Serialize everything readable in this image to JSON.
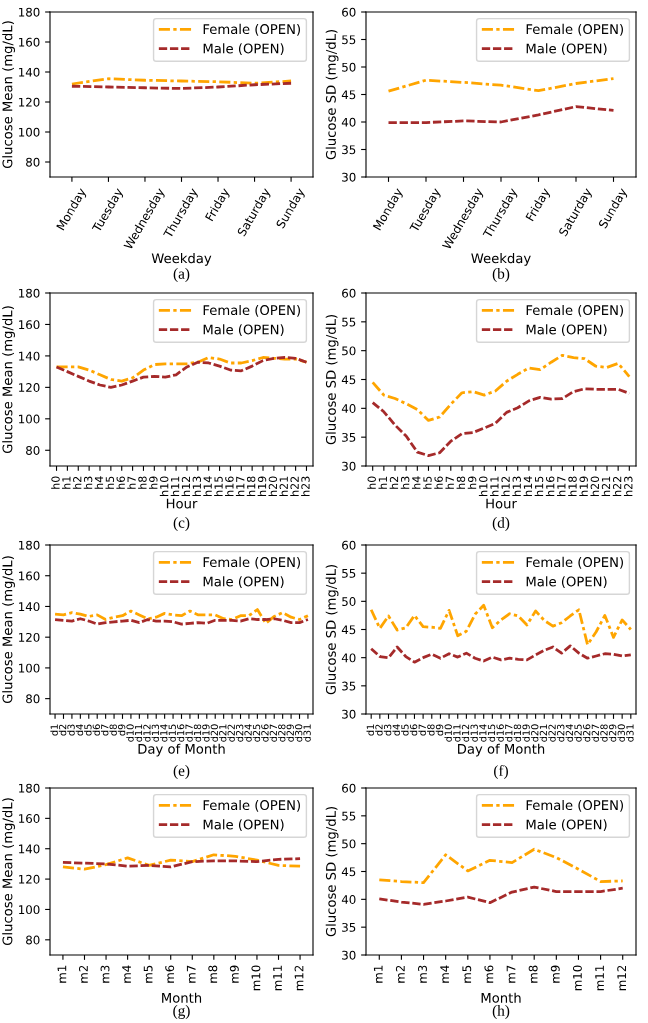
{
  "chart_data": [
    {
      "type": "line",
      "xlabel": "Weekday",
      "ylabel": "Glucose Mean (mg/dL)",
      "annotations": [
        "(a)"
      ],
      "categories": [
        "Monday",
        "Tuesday",
        "Wednesday",
        "Thursday",
        "Friday",
        "Saturday",
        "Sunday"
      ],
      "ylim": [
        70,
        180
      ],
      "yticks": [
        80,
        100,
        120,
        140,
        160,
        180
      ],
      "grid": false,
      "legend": "top right",
      "series": [
        {
          "name": "Female (OPEN)",
          "color": "#ffa500",
          "line_style": "dashdot",
          "values": [
            132,
            135.5,
            134.5,
            134,
            133.5,
            132.5,
            134
          ]
        },
        {
          "name": "Male (OPEN)",
          "color": "#a52a2a",
          "line_style": "dashed",
          "values": [
            130.5,
            130,
            129.5,
            129,
            130,
            131.5,
            132.5
          ]
        }
      ]
    },
    {
      "type": "line",
      "xlabel": "Weekday",
      "ylabel": "Glucose SD (mg/dL)",
      "annotations": [
        "(b)"
      ],
      "categories": [
        "Monday",
        "Tuesday",
        "Wednesday",
        "Thursday",
        "Friday",
        "Saturday",
        "Sunday"
      ],
      "ylim": [
        30,
        60
      ],
      "yticks": [
        30,
        35,
        40,
        45,
        50,
        55,
        60
      ],
      "grid": false,
      "legend": "top right",
      "series": [
        {
          "name": "Female (OPEN)",
          "color": "#ffa500",
          "line_style": "dashdot",
          "values": [
            45.6,
            47.6,
            47.2,
            46.7,
            45.7,
            47.0,
            47.9
          ]
        },
        {
          "name": "Male (OPEN)",
          "color": "#a52a2a",
          "line_style": "dashed",
          "values": [
            39.9,
            39.9,
            40.2,
            40.0,
            41.3,
            42.8,
            42.1
          ]
        }
      ]
    },
    {
      "type": "line",
      "xlabel": "Hour",
      "ylabel": "Glucose Mean (mg/dL)",
      "annotations": [
        "(c)"
      ],
      "categories": [
        "h0",
        "h1",
        "h2",
        "h3",
        "h4",
        "h5",
        "h6",
        "h7",
        "h8",
        "h9",
        "h10",
        "h11",
        "h12",
        "h13",
        "h14",
        "h15",
        "h16",
        "h17",
        "h18",
        "h19",
        "h20",
        "h21",
        "h22",
        "h23"
      ],
      "ylim": [
        70,
        180
      ],
      "yticks": [
        80,
        100,
        120,
        140,
        160,
        180
      ],
      "grid": false,
      "legend": "top right",
      "series": [
        {
          "name": "Female (OPEN)",
          "color": "#ffa500",
          "line_style": "dashdot",
          "values": [
            133,
            133,
            133,
            131,
            128,
            125,
            124,
            126,
            131,
            134.5,
            135,
            135,
            135,
            136,
            139,
            138,
            135.5,
            135.5,
            137,
            139,
            138.5,
            138,
            138,
            136
          ]
        },
        {
          "name": "Male (OPEN)",
          "color": "#a52a2a",
          "line_style": "dashed",
          "values": [
            133,
            130,
            127,
            124,
            121.5,
            120,
            121.5,
            124,
            126.5,
            127,
            126.5,
            128,
            133,
            136,
            135.5,
            133.5,
            131,
            130.5,
            133.5,
            137,
            138.5,
            139,
            138.5,
            136
          ]
        }
      ]
    },
    {
      "type": "line",
      "xlabel": "Hour",
      "ylabel": "Glucose SD (mg/dL)",
      "annotations": [
        "(d)"
      ],
      "categories": [
        "h0",
        "h1",
        "h2",
        "h3",
        "h4",
        "h5",
        "h6",
        "h7",
        "h8",
        "h9",
        "h10",
        "h11",
        "h12",
        "h13",
        "h14",
        "h15",
        "h16",
        "h17",
        "h18",
        "h19",
        "h20",
        "h21",
        "h22",
        "h23"
      ],
      "ylim": [
        30,
        60
      ],
      "yticks": [
        30,
        35,
        40,
        45,
        50,
        55,
        60
      ],
      "grid": false,
      "legend": "top right",
      "series": [
        {
          "name": "Female (OPEN)",
          "color": "#ffa500",
          "line_style": "dashdot",
          "values": [
            44.5,
            42.3,
            41.7,
            40.8,
            39.8,
            37.9,
            38.5,
            40.7,
            42.7,
            42.9,
            42.3,
            43,
            44.7,
            45.9,
            47,
            46.7,
            48,
            49.2,
            48.8,
            48.6,
            47.3,
            47.1,
            47.8,
            45.5
          ]
        },
        {
          "name": "Male (OPEN)",
          "color": "#a52a2a",
          "line_style": "dashed",
          "values": [
            41,
            39.4,
            37.1,
            35.2,
            32.4,
            31.8,
            32.3,
            34.3,
            35.6,
            35.8,
            36.6,
            37.4,
            39.3,
            40.1,
            41.3,
            41.9,
            41.6,
            41.7,
            42.9,
            43.4,
            43.3,
            43.3,
            43.3,
            42.6
          ]
        }
      ]
    },
    {
      "type": "line",
      "xlabel": "Day of Month",
      "ylabel": "Glucose Mean (mg/dL)",
      "annotations": [
        "(e)"
      ],
      "categories": [
        "d1",
        "d2",
        "d3",
        "d4",
        "d5",
        "d6",
        "d7",
        "d8",
        "d9",
        "d10",
        "d11",
        "d12",
        "d13",
        "d14",
        "d15",
        "d16",
        "d17",
        "d18",
        "d19",
        "d20",
        "d21",
        "d22",
        "d23",
        "d24",
        "d25",
        "d26",
        "d27",
        "d28",
        "d29",
        "d30",
        "d31"
      ],
      "ylim": [
        70,
        180
      ],
      "yticks": [
        80,
        100,
        120,
        140,
        160,
        180
      ],
      "grid": false,
      "legend": "top right",
      "series": [
        {
          "name": "Female (OPEN)",
          "color": "#ffa500",
          "line_style": "dashdot",
          "values": [
            135,
            134.5,
            136,
            135,
            133.5,
            134.5,
            131.5,
            133,
            134,
            137,
            134.5,
            132,
            133,
            135.5,
            134.5,
            134,
            137,
            134.5,
            134.5,
            134.5,
            132,
            131.5,
            134,
            134,
            138,
            129,
            133.5,
            136,
            133,
            131.5,
            134
          ]
        },
        {
          "name": "Male (OPEN)",
          "color": "#a52a2a",
          "line_style": "dashed",
          "values": [
            131.5,
            131,
            130.5,
            132,
            130.5,
            128.5,
            129.5,
            130,
            130.5,
            131,
            129.5,
            131.5,
            130.5,
            130.5,
            130,
            128.5,
            129,
            129.5,
            129,
            131,
            131,
            131,
            130.5,
            132,
            131.5,
            131.5,
            132,
            131,
            129.5,
            129.5,
            131.5
          ]
        }
      ]
    },
    {
      "type": "line",
      "xlabel": "Day of Month",
      "ylabel": "Glucose SD (mg/dL)",
      "annotations": [
        "(f)"
      ],
      "categories": [
        "d1",
        "d2",
        "d3",
        "d4",
        "d5",
        "d6",
        "d7",
        "d8",
        "d9",
        "d10",
        "d11",
        "d12",
        "d13",
        "d14",
        "d15",
        "d16",
        "d17",
        "d18",
        "d19",
        "d20",
        "d21",
        "d22",
        "d23",
        "d24",
        "d25",
        "d26",
        "d27",
        "d28",
        "d29",
        "d30",
        "d31"
      ],
      "ylim": [
        30,
        60
      ],
      "yticks": [
        30,
        35,
        40,
        45,
        50,
        55,
        60
      ],
      "grid": false,
      "legend": "top right",
      "series": [
        {
          "name": "Female (OPEN)",
          "color": "#ffa500",
          "line_style": "dashdot",
          "values": [
            48.5,
            45.2,
            47.4,
            44.9,
            45.3,
            47.5,
            45.5,
            45.4,
            45.2,
            48.4,
            43.9,
            44.7,
            47.7,
            49.3,
            45.3,
            46.7,
            47.8,
            47.4,
            45.8,
            48.3,
            46.6,
            45.6,
            46.2,
            47.4,
            48.5,
            42.3,
            44.6,
            47.5,
            43.6,
            46.7,
            45.0
          ]
        },
        {
          "name": "Male (OPEN)",
          "color": "#a52a2a",
          "line_style": "dashed",
          "values": [
            41.6,
            40.2,
            40.0,
            41.9,
            40.2,
            39.2,
            40.0,
            40.6,
            39.9,
            40.7,
            40.1,
            40.8,
            39.9,
            39.4,
            40.1,
            39.6,
            39.9,
            39.7,
            39.6,
            40.5,
            41.3,
            41.9,
            40.8,
            42.1,
            40.8,
            39.9,
            40.3,
            40.7,
            40.6,
            40.3,
            40.5
          ]
        }
      ]
    },
    {
      "type": "line",
      "xlabel": "Month",
      "ylabel": "Glucose Mean (mg/dL)",
      "annotations": [
        "(g)"
      ],
      "categories": [
        "m1",
        "m2",
        "m3",
        "m4",
        "m5",
        "m6",
        "m7",
        "m8",
        "m9",
        "m10",
        "m11",
        "m12"
      ],
      "ylim": [
        70,
        180
      ],
      "yticks": [
        80,
        100,
        120,
        140,
        160,
        180
      ],
      "grid": false,
      "legend": "top right",
      "series": [
        {
          "name": "Female (OPEN)",
          "color": "#ffa500",
          "line_style": "dashdot",
          "values": [
            128,
            126.5,
            129.5,
            134,
            129,
            132.5,
            131.5,
            136,
            135,
            132.5,
            129,
            128.5
          ]
        },
        {
          "name": "Male (OPEN)",
          "color": "#a52a2a",
          "line_style": "dashed",
          "values": [
            131,
            130.5,
            130,
            128.5,
            129,
            128,
            131.5,
            132,
            132,
            131.5,
            133,
            133.5
          ]
        }
      ]
    },
    {
      "type": "line",
      "xlabel": "Month",
      "ylabel": "Glucose SD (mg/dL)",
      "annotations": [
        "(h)"
      ],
      "categories": [
        "m1",
        "m2",
        "m3",
        "m4",
        "m5",
        "m6",
        "m7",
        "m8",
        "m9",
        "m10",
        "m11",
        "m12"
      ],
      "ylim": [
        30,
        60
      ],
      "yticks": [
        30,
        35,
        40,
        45,
        50,
        55,
        60
      ],
      "grid": false,
      "legend": "top right",
      "series": [
        {
          "name": "Female (OPEN)",
          "color": "#ffa500",
          "line_style": "dashdot",
          "values": [
            43.5,
            43.2,
            43.0,
            48.0,
            45.1,
            47.0,
            46.6,
            49.0,
            47.5,
            45.4,
            43.2,
            43.3
          ]
        },
        {
          "name": "Male (OPEN)",
          "color": "#a52a2a",
          "line_style": "dashed",
          "values": [
            40.1,
            39.5,
            39.1,
            39.7,
            40.4,
            39.4,
            41.3,
            42.2,
            41.4,
            41.4,
            41.4,
            42.0
          ]
        }
      ]
    }
  ]
}
